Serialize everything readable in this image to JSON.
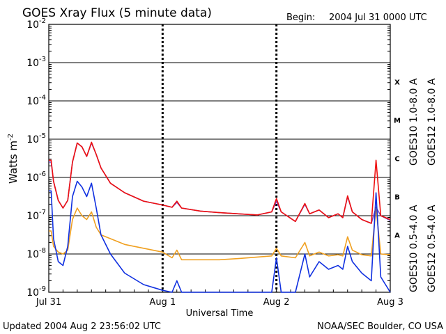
{
  "header": {
    "title": "GOES Xray Flux (5 minute data)",
    "begin_label": "Begin:",
    "begin_value": "2004 Jul 31 0000 UTC"
  },
  "footer": {
    "updated": "Updated 2004 Aug  2 23:56:02 UTC",
    "credit": "NOAA/SEC Boulder, CO USA"
  },
  "chart_data": {
    "type": "line",
    "title": "GOES Xray Flux (5 minute data)",
    "xlabel": "Universal Time",
    "ylabel_base": "Watts m",
    "ylabel_exp": "-2",
    "x_unit": "hours since 2004 Jul 31 0000 UTC",
    "xlim": [
      0,
      72
    ],
    "x_ticks": [
      {
        "x": 0,
        "label": "Jul 31"
      },
      {
        "x": 24,
        "label": "Aug 1"
      },
      {
        "x": 48,
        "label": "Aug 2"
      },
      {
        "x": 72,
        "label": "Aug 3"
      }
    ],
    "y_scale": "log",
    "ylim_exp": [
      -9,
      -2
    ],
    "y_ticks": [
      {
        "exp": -2,
        "label": "10",
        "sup": "-2"
      },
      {
        "exp": -3,
        "label": "10",
        "sup": "-3"
      },
      {
        "exp": -4,
        "label": "10",
        "sup": "-4"
      },
      {
        "exp": -5,
        "label": "10",
        "sup": "-5"
      },
      {
        "exp": -6,
        "label": "10",
        "sup": "-6"
      },
      {
        "exp": -7,
        "label": "10",
        "sup": "-7"
      },
      {
        "exp": -8,
        "label": "10",
        "sup": "-8"
      },
      {
        "exp": -9,
        "label": "10",
        "sup": "-9"
      }
    ],
    "flare_classes": [
      {
        "label": "X",
        "exp": -3.5
      },
      {
        "label": "M",
        "exp": -4.5
      },
      {
        "label": "C",
        "exp": -5.5
      },
      {
        "label": "B",
        "exp": -6.5
      },
      {
        "label": "A",
        "exp": -7.5
      }
    ],
    "grid": "horizontal solid at decades; dashed vertical at day boundaries",
    "legend": [
      {
        "text": "GOES10 1.0-8.0 A",
        "color": "#7a3fbf"
      },
      {
        "text": "GOES12 1.0-8.0 A",
        "color": "#ee1111"
      },
      {
        "text": "GOES10 0.5-4.0 A",
        "color": "#f0a020"
      },
      {
        "text": "GOES12 0.5-4.0 A",
        "color": "#1030e0"
      }
    ],
    "series": [
      {
        "name": "GOES10 1.0-8.0 A",
        "color": "#7a3fbf",
        "points": [
          [
            0,
            -5.6
          ],
          [
            0.5,
            -5.6
          ],
          [
            1,
            -6.1
          ],
          [
            2,
            -6.6
          ],
          [
            3,
            -6.8
          ],
          [
            4,
            -6.6
          ],
          [
            5,
            -5.6
          ],
          [
            6,
            -5.1
          ],
          [
            7,
            -5.2
          ],
          [
            8,
            -5.45
          ],
          [
            9,
            -5.1
          ],
          [
            10,
            -5.4
          ],
          [
            11,
            -5.75
          ],
          [
            13,
            -6.15
          ],
          [
            16,
            -6.4
          ],
          [
            20,
            -6.62
          ],
          [
            24,
            -6.72
          ],
          [
            26,
            -6.78
          ],
          [
            27,
            -6.65
          ],
          [
            28,
            -6.8
          ],
          [
            32,
            -6.88
          ],
          [
            36,
            -6.92
          ],
          [
            40,
            -6.95
          ],
          [
            44,
            -6.98
          ],
          [
            47,
            -6.9
          ],
          [
            48,
            -6.62
          ],
          [
            49,
            -6.9
          ],
          [
            52,
            -7.15
          ],
          [
            54,
            -6.7
          ],
          [
            55,
            -6.95
          ],
          [
            57,
            -6.85
          ],
          [
            59,
            -7.05
          ],
          [
            61,
            -6.95
          ],
          [
            62,
            -7.05
          ],
          [
            63,
            -6.5
          ],
          [
            64,
            -6.9
          ],
          [
            66,
            -7.1
          ],
          [
            68,
            -7.2
          ],
          [
            69,
            -6.78
          ],
          [
            70,
            -7.0
          ],
          [
            72,
            -7.12
          ]
        ]
      },
      {
        "name": "GOES12 1.0-8.0 A",
        "color": "#ee1111",
        "points": [
          [
            0,
            -5.55
          ],
          [
            0.5,
            -5.55
          ],
          [
            1,
            -6.1
          ],
          [
            2,
            -6.6
          ],
          [
            3,
            -6.8
          ],
          [
            4,
            -6.6
          ],
          [
            5,
            -5.6
          ],
          [
            6,
            -5.1
          ],
          [
            7,
            -5.2
          ],
          [
            8,
            -5.45
          ],
          [
            9,
            -5.08
          ],
          [
            10,
            -5.4
          ],
          [
            11,
            -5.75
          ],
          [
            13,
            -6.15
          ],
          [
            16,
            -6.4
          ],
          [
            20,
            -6.62
          ],
          [
            24,
            -6.72
          ],
          [
            26,
            -6.78
          ],
          [
            27,
            -6.62
          ],
          [
            28,
            -6.8
          ],
          [
            32,
            -6.88
          ],
          [
            36,
            -6.92
          ],
          [
            40,
            -6.95
          ],
          [
            44,
            -6.98
          ],
          [
            47,
            -6.9
          ],
          [
            48,
            -6.55
          ],
          [
            49,
            -6.9
          ],
          [
            52,
            -7.15
          ],
          [
            54,
            -6.68
          ],
          [
            55,
            -6.95
          ],
          [
            57,
            -6.85
          ],
          [
            59,
            -7.05
          ],
          [
            61,
            -6.95
          ],
          [
            62,
            -7.05
          ],
          [
            63,
            -6.48
          ],
          [
            64,
            -6.9
          ],
          [
            66,
            -7.1
          ],
          [
            68,
            -7.2
          ],
          [
            69,
            -5.55
          ],
          [
            70,
            -7.0
          ],
          [
            72,
            -7.1
          ]
        ]
      },
      {
        "name": "GOES10 0.5-4.0 A",
        "color": "#f0a020",
        "points": [
          [
            0,
            -7.4
          ],
          [
            0.5,
            -7.4
          ],
          [
            1,
            -7.8
          ],
          [
            2,
            -7.95
          ],
          [
            3,
            -8.0
          ],
          [
            4,
            -7.9
          ],
          [
            5,
            -7.1
          ],
          [
            6,
            -6.8
          ],
          [
            7,
            -7.0
          ],
          [
            8,
            -7.1
          ],
          [
            9,
            -6.9
          ],
          [
            10,
            -7.3
          ],
          [
            11,
            -7.5
          ],
          [
            13,
            -7.6
          ],
          [
            16,
            -7.75
          ],
          [
            20,
            -7.85
          ],
          [
            24,
            -7.95
          ],
          [
            26,
            -8.1
          ],
          [
            27,
            -7.9
          ],
          [
            28,
            -8.15
          ],
          [
            32,
            -8.15
          ],
          [
            36,
            -8.15
          ],
          [
            40,
            -8.12
          ],
          [
            44,
            -8.08
          ],
          [
            47,
            -8.05
          ],
          [
            48,
            -7.85
          ],
          [
            49,
            -8.05
          ],
          [
            52,
            -8.1
          ],
          [
            54,
            -7.7
          ],
          [
            55,
            -8.05
          ],
          [
            57,
            -7.95
          ],
          [
            59,
            -8.05
          ],
          [
            61,
            -8.02
          ],
          [
            62,
            -8.05
          ],
          [
            63,
            -7.55
          ],
          [
            64,
            -7.9
          ],
          [
            66,
            -8.02
          ],
          [
            68,
            -8.05
          ],
          [
            69,
            -6.8
          ],
          [
            70,
            -8.0
          ],
          [
            72,
            -8.02
          ]
        ]
      },
      {
        "name": "GOES12 0.5-4.0 A",
        "color": "#1030e0",
        "points": [
          [
            0,
            -6.35
          ],
          [
            0.5,
            -6.35
          ],
          [
            1,
            -7.6
          ],
          [
            2,
            -8.2
          ],
          [
            3,
            -8.3
          ],
          [
            4,
            -7.8
          ],
          [
            5,
            -6.5
          ],
          [
            6,
            -6.1
          ],
          [
            7,
            -6.25
          ],
          [
            8,
            -6.5
          ],
          [
            9,
            -6.15
          ],
          [
            10,
            -6.8
          ],
          [
            11,
            -7.5
          ],
          [
            13,
            -8.0
          ],
          [
            16,
            -8.5
          ],
          [
            20,
            -8.8
          ],
          [
            24,
            -8.95
          ],
          [
            26,
            -9.0
          ],
          [
            27,
            -8.7
          ],
          [
            28,
            -9.0
          ],
          [
            32,
            -9.0
          ],
          [
            36,
            -9.0
          ],
          [
            40,
            -9.0
          ],
          [
            44,
            -9.0
          ],
          [
            47,
            -9.0
          ],
          [
            48,
            -8.1
          ],
          [
            49,
            -9.0
          ],
          [
            52,
            -9.0
          ],
          [
            54,
            -8.0
          ],
          [
            55,
            -8.6
          ],
          [
            57,
            -8.2
          ],
          [
            59,
            -8.4
          ],
          [
            61,
            -8.3
          ],
          [
            62,
            -8.4
          ],
          [
            63,
            -7.8
          ],
          [
            64,
            -8.2
          ],
          [
            66,
            -8.5
          ],
          [
            68,
            -8.7
          ],
          [
            69,
            -6.4
          ],
          [
            70,
            -8.6
          ],
          [
            72,
            -9.0
          ]
        ]
      }
    ]
  }
}
